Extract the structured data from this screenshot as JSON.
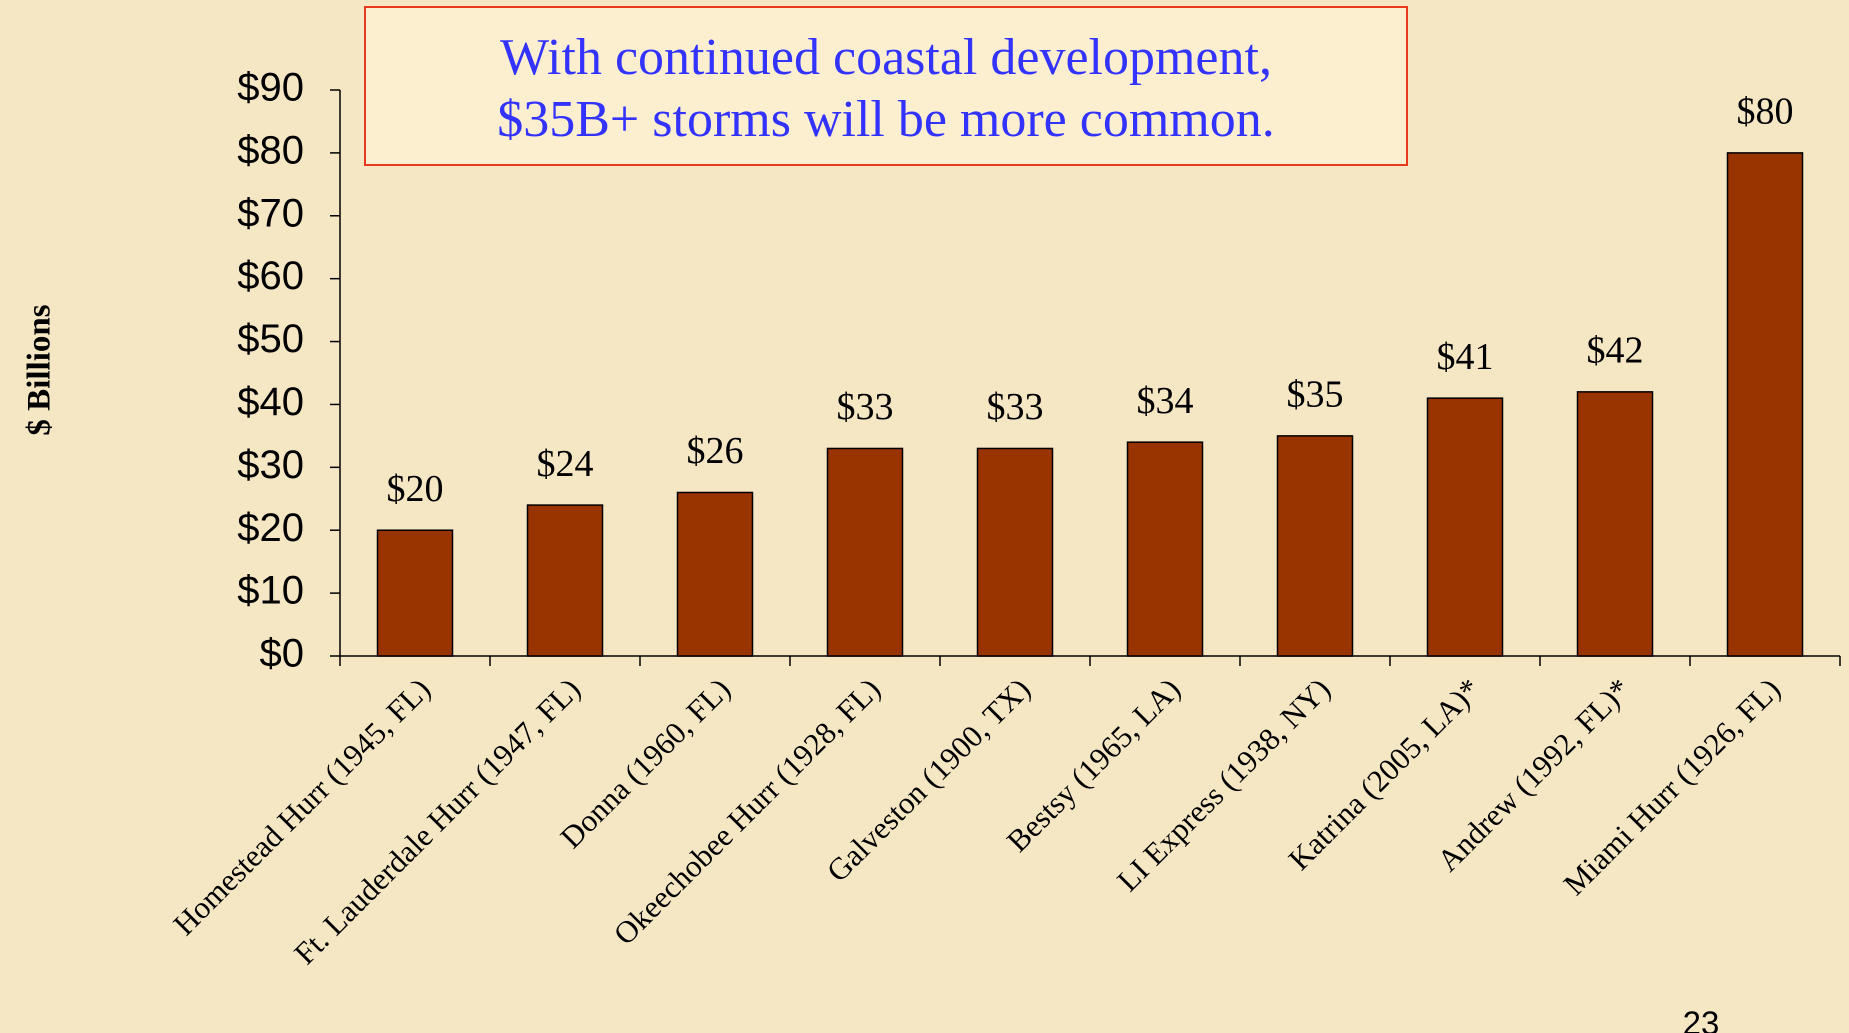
{
  "chart_data": {
    "type": "bar",
    "annotation": [
      "With continued coastal development,",
      "$35B+ storms will be more common."
    ],
    "ylabel": "$ Billions",
    "categories": [
      "Homestead Hurr (1945, FL)",
      "Ft. Lauderdale Hurr (1947, FL)",
      "Donna (1960, FL)",
      "Okeechobee Hurr (1928, FL)",
      "Galveston (1900, TX)",
      "Bestsy (1965, LA)",
      "LI Express (1938, NY)",
      "Katrina (2005, LA)*",
      "Andrew (1992, FL)*",
      "Miami Hurr (1926, FL)"
    ],
    "values": [
      20,
      24,
      26,
      33,
      33,
      34,
      35,
      41,
      42,
      80
    ],
    "value_labels": [
      "$20",
      "$24",
      "$26",
      "$33",
      "$33",
      "$34",
      "$35",
      "$41",
      "$42",
      "$80"
    ],
    "color": "#993300",
    "ylim": [
      0,
      90
    ],
    "yticks": [
      {
        "value": 0,
        "label": "$0"
      },
      {
        "value": 10,
        "label": "$10"
      },
      {
        "value": 20,
        "label": "$20"
      },
      {
        "value": 30,
        "label": "$30"
      },
      {
        "value": 40,
        "label": "$40"
      },
      {
        "value": 50,
        "label": "$50"
      },
      {
        "value": 60,
        "label": "$60"
      },
      {
        "value": 70,
        "label": "$70"
      },
      {
        "value": 80,
        "label": "$80"
      },
      {
        "value": 90,
        "label": "$90"
      }
    ],
    "grid": false
  },
  "page_number": "23"
}
